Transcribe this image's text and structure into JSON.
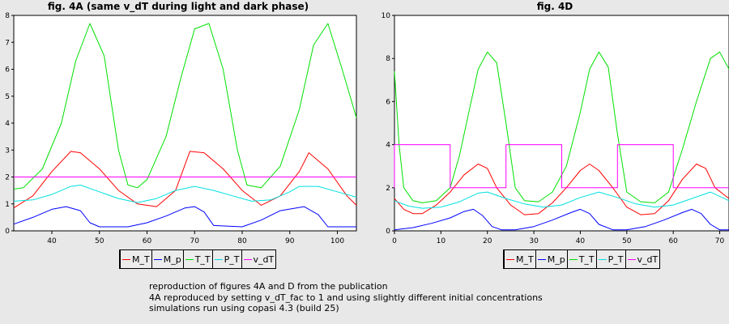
{
  "colors": {
    "M_T": "#ff0000",
    "M_p": "#0000ff",
    "T_T": "#00e000",
    "P_T": "#00e0e0",
    "v_dT": "#ff00ff"
  },
  "chart_data": [
    {
      "type": "line",
      "title": "fig. 4A (same v_dT during light and dark phase)",
      "xlim": [
        32,
        104
      ],
      "ylim": [
        0,
        8
      ],
      "xticks": [
        40,
        50,
        60,
        70,
        80,
        90,
        100
      ],
      "yticks": [
        0,
        1,
        2,
        3,
        4,
        5,
        6,
        7,
        8
      ],
      "legend": [
        "M_T",
        "M_p",
        "T_T",
        "P_T",
        "v_dT"
      ],
      "legend_position": "bottom",
      "series": [
        {
          "name": "M_T",
          "x": [
            32,
            36,
            40,
            44,
            46,
            50,
            54,
            58,
            62,
            66,
            69,
            72,
            76,
            80,
            84,
            88,
            92,
            94,
            98,
            102,
            104
          ],
          "y": [
            0.85,
            1.3,
            2.2,
            2.95,
            2.9,
            2.3,
            1.5,
            1.0,
            0.9,
            1.5,
            2.95,
            2.9,
            2.3,
            1.5,
            0.95,
            1.3,
            2.2,
            2.9,
            2.3,
            1.3,
            0.95
          ]
        },
        {
          "name": "M_p",
          "x": [
            32,
            36,
            40,
            43,
            46,
            48,
            50,
            56,
            60,
            64,
            68,
            70,
            72,
            74,
            80,
            84,
            88,
            93,
            96,
            98,
            104
          ],
          "y": [
            0.25,
            0.5,
            0.8,
            0.9,
            0.75,
            0.3,
            0.15,
            0.15,
            0.3,
            0.55,
            0.85,
            0.9,
            0.7,
            0.2,
            0.15,
            0.4,
            0.75,
            0.9,
            0.6,
            0.15,
            0.15
          ]
        },
        {
          "name": "T_T",
          "x": [
            32,
            34,
            38,
            42,
            45,
            48,
            51,
            54,
            56,
            58,
            60,
            64,
            67,
            70,
            73,
            76,
            79,
            81,
            84,
            88,
            92,
            95,
            98,
            101,
            104
          ],
          "y": [
            1.55,
            1.6,
            2.3,
            4.0,
            6.3,
            7.7,
            6.5,
            3.0,
            1.7,
            1.6,
            1.9,
            3.5,
            5.6,
            7.5,
            7.7,
            6.0,
            3.0,
            1.7,
            1.6,
            2.4,
            4.5,
            6.9,
            7.7,
            6.0,
            4.2
          ]
        },
        {
          "name": "P_T",
          "x": [
            32,
            36,
            40,
            44,
            46,
            50,
            54,
            58,
            62,
            66,
            70,
            74,
            78,
            82,
            86,
            90,
            92,
            96,
            100,
            104
          ],
          "y": [
            1.1,
            1.15,
            1.35,
            1.65,
            1.7,
            1.45,
            1.2,
            1.05,
            1.2,
            1.5,
            1.65,
            1.5,
            1.3,
            1.1,
            1.15,
            1.45,
            1.65,
            1.65,
            1.45,
            1.25
          ]
        },
        {
          "name": "v_dT",
          "x": [
            32,
            104
          ],
          "y": [
            2,
            2
          ]
        }
      ]
    },
    {
      "type": "line",
      "title": "fig. 4D",
      "xlim": [
        0,
        72
      ],
      "ylim": [
        0,
        10
      ],
      "xticks": [
        0,
        10,
        20,
        30,
        40,
        50,
        60,
        70
      ],
      "yticks": [
        0,
        2,
        4,
        6,
        8,
        10
      ],
      "legend": [
        "M_T",
        "M_p",
        "T_T",
        "P_T",
        "v_dT"
      ],
      "legend_position": "bottom",
      "series": [
        {
          "name": "M_T",
          "x": [
            0,
            2,
            4,
            6,
            9,
            12,
            15,
            18,
            20,
            22,
            25,
            28,
            31,
            34,
            37,
            40,
            42,
            44,
            47,
            50,
            53,
            56,
            59,
            62,
            65,
            67,
            69,
            72
          ],
          "y": [
            1.5,
            1.0,
            0.8,
            0.8,
            1.2,
            1.8,
            2.6,
            3.1,
            2.9,
            2.0,
            1.2,
            0.75,
            0.8,
            1.3,
            2.0,
            2.8,
            3.1,
            2.8,
            2.0,
            1.1,
            0.75,
            0.8,
            1.4,
            2.4,
            3.1,
            2.9,
            2.0,
            1.5
          ]
        },
        {
          "name": "M_p",
          "x": [
            0,
            4,
            8,
            12,
            15,
            17,
            19,
            21,
            23,
            26,
            30,
            34,
            38,
            40,
            42,
            44,
            47,
            50,
            54,
            58,
            62,
            64,
            66,
            68,
            70,
            72
          ],
          "y": [
            0.05,
            0.15,
            0.35,
            0.6,
            0.9,
            1.0,
            0.7,
            0.2,
            0.05,
            0.05,
            0.2,
            0.5,
            0.85,
            1.0,
            0.8,
            0.3,
            0.05,
            0.05,
            0.2,
            0.5,
            0.85,
            1.0,
            0.8,
            0.3,
            0.05,
            0.05
          ]
        },
        {
          "name": "T_T",
          "x": [
            0,
            1,
            2,
            4,
            6,
            9,
            12,
            14,
            16,
            18,
            20,
            22,
            24,
            26,
            28,
            31,
            34,
            37,
            40,
            42,
            44,
            46,
            48,
            50,
            53,
            56,
            59,
            62,
            65,
            68,
            70,
            72
          ],
          "y": [
            7.4,
            4.0,
            2.0,
            1.4,
            1.3,
            1.4,
            2.0,
            3.5,
            5.5,
            7.5,
            8.3,
            7.8,
            5.0,
            2.0,
            1.4,
            1.35,
            1.8,
            3.0,
            5.5,
            7.5,
            8.3,
            7.6,
            4.5,
            1.8,
            1.35,
            1.3,
            1.8,
            3.8,
            6.0,
            8.0,
            8.3,
            7.5
          ]
        },
        {
          "name": "P_T",
          "x": [
            0,
            3,
            6,
            10,
            14,
            18,
            20,
            24,
            28,
            32,
            36,
            40,
            44,
            48,
            52,
            56,
            60,
            64,
            68,
            70,
            72
          ],
          "y": [
            1.4,
            1.15,
            1.05,
            1.1,
            1.35,
            1.75,
            1.8,
            1.5,
            1.25,
            1.1,
            1.2,
            1.55,
            1.8,
            1.55,
            1.25,
            1.1,
            1.2,
            1.5,
            1.8,
            1.6,
            1.4
          ]
        },
        {
          "name": "v_dT",
          "x": [
            0,
            0,
            12,
            12,
            24,
            24,
            36,
            36,
            48,
            48,
            60,
            60,
            72
          ],
          "y": [
            2,
            4,
            4,
            2,
            2,
            4,
            4,
            2,
            2,
            4,
            4,
            2,
            2
          ]
        }
      ]
    }
  ],
  "notes": {
    "line1": "reproduction of figures 4A and D from the publication",
    "line2": "4A reproduced by setting v_dT_fac to 1 and using slightly different initial concentrations",
    "line3": "simulations run using copasi 4.3 (build 25)"
  }
}
